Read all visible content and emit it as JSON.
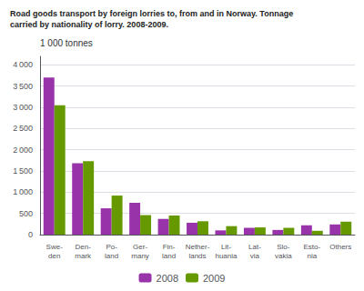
{
  "chart_data": {
    "type": "bar",
    "title": "Road goods transport by foreign lorries to, from and in Norway. Tonnage\ncarried by nationality of lorry. 2008-2009.",
    "ylabel": "1 000 tonnes",
    "categories": [
      "Swe-\nden",
      "Den-\nmark",
      "Po-\nland",
      "Ger-\nmany",
      "Fin-\nland",
      "Nether-\nlands",
      "Lit-\nhuania",
      "Lat-\nvia",
      "Slo-\nvakia",
      "Esto-\nnia",
      "Others"
    ],
    "series": [
      {
        "name": "2008",
        "color": "#9933aa",
        "values": [
          3700,
          1680,
          620,
          750,
          370,
          280,
          100,
          160,
          110,
          220,
          240
        ]
      },
      {
        "name": "2009",
        "color": "#669900",
        "values": [
          3050,
          1730,
          920,
          460,
          450,
          315,
          200,
          170,
          160,
          90,
          305
        ]
      }
    ],
    "ylim": [
      0,
      4200
    ],
    "yticks": [
      0,
      500,
      {
        "value": 1000,
        "label": "1 000"
      },
      {
        "value": 1500,
        "label": "1 500"
      },
      {
        "value": 2000,
        "label": "2 000"
      },
      {
        "value": 2500,
        "label": "2 500"
      },
      {
        "value": 3000,
        "label": "3 000"
      },
      {
        "value": 3500,
        "label": "3 500"
      },
      {
        "value": 4000,
        "label": "4 000"
      }
    ],
    "grid": true,
    "legend": "bottom"
  }
}
